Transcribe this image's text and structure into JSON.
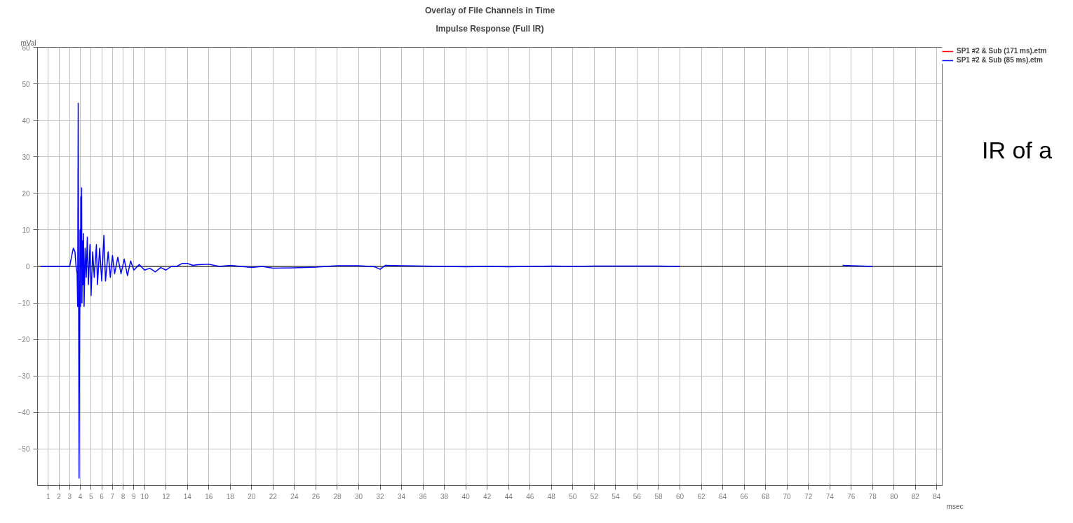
{
  "chart_data": {
    "type": "line",
    "title": "Overlay of File Channels in Time",
    "subtitle": "Impulse Response (Full IR)",
    "xlabel": "msec",
    "ylabel": "mVal",
    "annotations": [
      "IR of a"
    ],
    "x": [
      0.3,
      3.0,
      3.2,
      3.35,
      3.5,
      3.6,
      3.7,
      3.75,
      3.8,
      3.85,
      3.88,
      3.92,
      3.97,
      4.02,
      4.05,
      4.08,
      4.12,
      4.15,
      4.2,
      4.25,
      4.3,
      4.35,
      4.45,
      4.55,
      4.65,
      4.75,
      4.9,
      5.0,
      5.15,
      5.3,
      5.5,
      5.6,
      5.8,
      6.0,
      6.2,
      6.35,
      6.6,
      6.8,
      7.0,
      7.2,
      7.5,
      7.8,
      8.1,
      8.4,
      8.7,
      9.0,
      9.5,
      10,
      10.5,
      11,
      11.5,
      12,
      12.5,
      13,
      13.5,
      14,
      14.5,
      15,
      16,
      17,
      18,
      19,
      20,
      21,
      22,
      24,
      26,
      28,
      30,
      31.5,
      32,
      32.5,
      34,
      36,
      38,
      40,
      42,
      44,
      46,
      48,
      50,
      52,
      54,
      56,
      58,
      60,
      62,
      64,
      68,
      72,
      75.2,
      78
    ],
    "series": [
      {
        "name": "SP1 #2 & Sub (171 ms).etm",
        "color": "#ff0000",
        "values": [
          null,
          null,
          null,
          null,
          null,
          null,
          null,
          null,
          null,
          null,
          null,
          null,
          null,
          null,
          null,
          null,
          null,
          null,
          null,
          null,
          null,
          null,
          null,
          null,
          null,
          null,
          null,
          null,
          null,
          null,
          null,
          null,
          null,
          null,
          null,
          null,
          null,
          null,
          null,
          null,
          null,
          null,
          null,
          null,
          null,
          null,
          null,
          null,
          null,
          null,
          null,
          null,
          null,
          null,
          null,
          null,
          null,
          null,
          null,
          null,
          null,
          null,
          null,
          null,
          null,
          null,
          null,
          null,
          null,
          null,
          null,
          null,
          null,
          null,
          null,
          null,
          null,
          null,
          null,
          null,
          null,
          null,
          null,
          null,
          null,
          null,
          null,
          null,
          null,
          null,
          null,
          null
        ]
      },
      {
        "name": "SP1 #2 & Sub (85 ms).etm",
        "color": "#0000ff",
        "values": [
          0,
          0,
          3,
          5,
          4,
          0,
          -2,
          -11,
          44.7,
          -20,
          -58,
          -25,
          10,
          -11,
          19,
          0,
          21.5,
          -10,
          7,
          -5,
          9,
          -11,
          5,
          -3,
          8,
          -5,
          6,
          -8,
          4,
          -3,
          6,
          -5,
          5,
          -4,
          8.5,
          -4,
          4,
          -3,
          3,
          -2,
          2.5,
          -2,
          2,
          -2.5,
          1.5,
          -1,
          0.5,
          -1,
          -0.5,
          -1.5,
          -0.3,
          -1,
          0,
          0,
          0.8,
          0.8,
          0.3,
          0.5,
          0.6,
          0,
          0.3,
          0,
          -0.3,
          0,
          -0.5,
          -0.4,
          -0.2,
          0.2,
          0.2,
          -0.1,
          -0.8,
          0.3,
          0.2,
          0.1,
          0,
          -0.1,
          0,
          -0.1,
          0,
          0.1,
          0,
          0.1,
          0.1,
          0.1,
          0.1,
          0,
          null,
          null,
          null,
          null,
          0.3,
          0
        ]
      }
    ],
    "ref_lines": [
      {
        "axis": "y",
        "value": 0,
        "color": "#000000"
      }
    ],
    "xlim": [
      0,
      84.5
    ],
    "ylim": [
      -60,
      60
    ],
    "xticks": [
      1,
      2,
      3,
      4,
      5,
      6,
      7,
      8,
      9,
      10,
      12,
      14,
      16,
      18,
      20,
      22,
      24,
      26,
      28,
      30,
      32,
      34,
      36,
      38,
      40,
      42,
      44,
      46,
      48,
      50,
      52,
      54,
      56,
      58,
      60,
      62,
      64,
      66,
      68,
      70,
      72,
      74,
      76,
      78,
      80,
      82,
      84
    ],
    "yticks": [
      -50,
      -40,
      -30,
      -20,
      -10,
      0,
      10,
      20,
      30,
      40,
      50,
      60
    ],
    "grid": true,
    "legend": "top right"
  }
}
